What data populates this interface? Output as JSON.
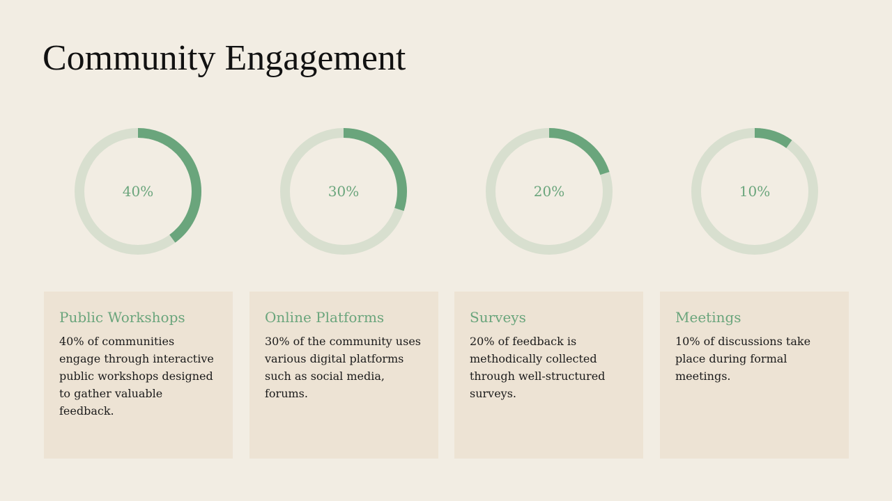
{
  "title": "Community Engagement",
  "colors": {
    "background": "#f2ede3",
    "accent": "#6aa57c",
    "track": "#d8dfcf",
    "card": "#ede3d4",
    "text": "#1a1a1a"
  },
  "metrics": [
    {
      "value": 40,
      "label": "40%",
      "title": "Public Workshops",
      "description": "40% of communities engage through interactive public workshops designed to gather valuable feedback."
    },
    {
      "value": 30,
      "label": "30%",
      "title": "Online Platforms",
      "description": "30% of the community uses various digital platforms such as social media, forums."
    },
    {
      "value": 20,
      "label": "20%",
      "title": "Surveys",
      "description": "20% of feedback is methodically collected through well-structured surveys."
    },
    {
      "value": 10,
      "label": "10%",
      "title": "Meetings",
      "description": "10% of discussions take place during formal meetings."
    }
  ]
}
